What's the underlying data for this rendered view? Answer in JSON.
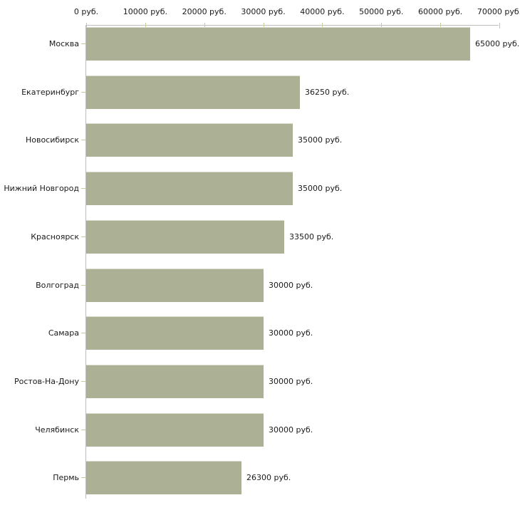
{
  "chart_data": {
    "type": "bar",
    "orientation": "horizontal",
    "title": "",
    "xlabel": "",
    "ylabel": "",
    "grid": false,
    "legend": false,
    "categories": [
      "Москва",
      "Екатеринбург",
      "Новосибирск",
      "Нижний Новгород",
      "Красноярск",
      "Волгоград",
      "Самара",
      "Ростов-На-Дону",
      "Челябинск",
      "Пермь"
    ],
    "values": [
      65000,
      36250,
      35000,
      35000,
      33500,
      30000,
      30000,
      30000,
      30000,
      26300
    ],
    "value_labels": [
      "65000 руб.",
      "36250 руб.",
      "35000 руб.",
      "35000 руб.",
      "33500 руб.",
      "30000 руб.",
      "30000 руб.",
      "30000 руб.",
      "30000 руб.",
      "26300 руб."
    ],
    "x_axis": {
      "position": "top",
      "min": 0,
      "max": 70000,
      "tick_values": [
        0,
        10000,
        20000,
        30000,
        40000,
        50000,
        60000,
        70000
      ],
      "tick_labels": [
        "0 руб.",
        "10000 руб.",
        "20000 руб.",
        "30000 руб.",
        "40000 руб.",
        "50000 руб.",
        "60000 руб.",
        "70000 руб."
      ]
    },
    "colors": {
      "bar_fill": "#acb094",
      "bar_top_edge": "#d9dbca",
      "axis_line": "#bdbdbd",
      "tick_mark": "#c9c897",
      "text": "#1a1a1a",
      "background": "#ffffff"
    }
  }
}
